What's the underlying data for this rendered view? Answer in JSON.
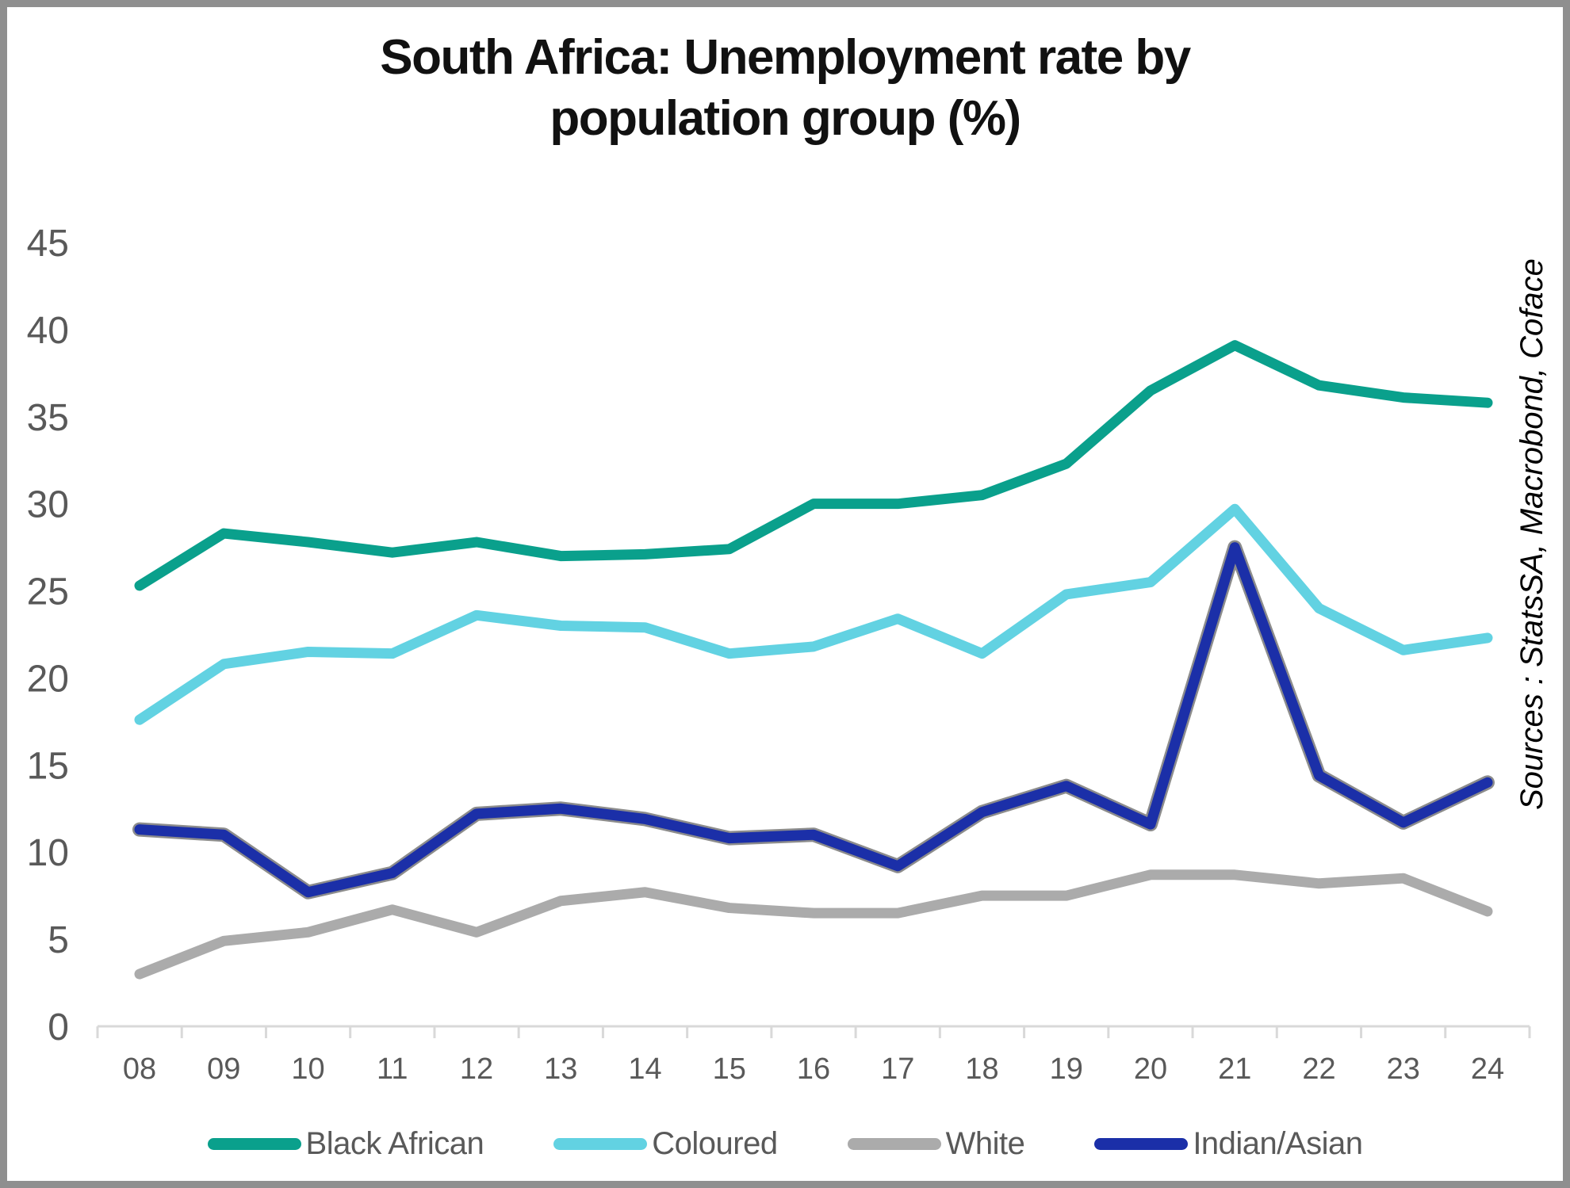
{
  "title": {
    "text": "South Africa: Unemployment rate by population group (%)",
    "line1": "South Africa: Unemployment rate by",
    "line2": "population group (%)"
  },
  "source_note": "Sources : StatsSA, Macrobond, Coface",
  "colors": {
    "axis": "#d9d9d9",
    "tick_label": "#595959",
    "title_text": "#111111",
    "frame_border": "#8f8f8f",
    "indian_asian_outline": "#8c8c8c"
  },
  "chart_data": {
    "type": "line",
    "title": "South Africa: Unemployment rate by population group (%)",
    "xlabel": "",
    "ylabel": "",
    "ylim": [
      0,
      45
    ],
    "y_tick_step": 5,
    "y_ticks": [
      0,
      5,
      10,
      15,
      20,
      25,
      30,
      35,
      40,
      45
    ],
    "grid": false,
    "legend_position": "bottom",
    "categories": [
      "08",
      "09",
      "10",
      "11",
      "12",
      "13",
      "14",
      "15",
      "16",
      "17",
      "18",
      "19",
      "20",
      "21",
      "22",
      "23",
      "24"
    ],
    "series": [
      {
        "name": "Black African",
        "color": "#0aa08c",
        "values": [
          25.3,
          28.3,
          27.8,
          27.2,
          27.8,
          27.0,
          27.1,
          27.4,
          30.0,
          30.0,
          30.5,
          32.3,
          36.5,
          39.1,
          36.8,
          36.1,
          35.8
        ]
      },
      {
        "name": "Coloured",
        "color": "#62d2e2",
        "values": [
          17.6,
          20.8,
          21.5,
          21.4,
          23.6,
          23.0,
          22.9,
          21.4,
          21.8,
          23.4,
          21.4,
          24.8,
          25.5,
          29.7,
          24.0,
          21.6,
          22.3
        ]
      },
      {
        "name": "White",
        "color": "#ababab",
        "values": [
          3.0,
          4.9,
          5.4,
          6.7,
          5.4,
          7.2,
          7.7,
          6.8,
          6.5,
          6.5,
          7.5,
          7.5,
          8.7,
          8.7,
          8.2,
          8.5,
          6.6
        ]
      },
      {
        "name": "Indian/Asian",
        "color": "#1b2fa8",
        "outline_color": "#8c8c8c",
        "values": [
          11.3,
          11.0,
          7.7,
          8.8,
          12.2,
          12.5,
          11.9,
          10.8,
          11.0,
          9.2,
          12.3,
          13.8,
          11.6,
          27.5,
          14.4,
          11.7,
          14.0
        ]
      }
    ]
  }
}
